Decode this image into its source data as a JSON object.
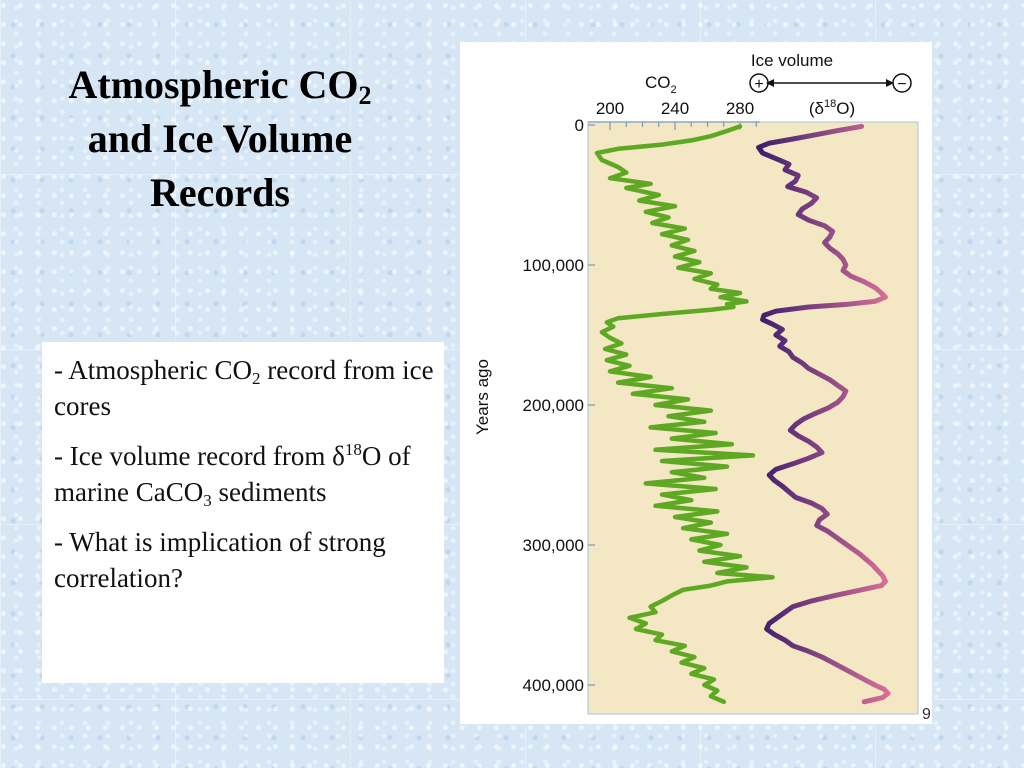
{
  "slide": {
    "title_line1": "Atmospheric CO",
    "title_line1_sub": "2",
    "title_line2": "and Ice Volume",
    "title_line3": "Records",
    "bullets": [
      {
        "a": "- Atmospheric CO",
        "sub": "2",
        "b": " record from ice cores"
      },
      {
        "a": "- Ice volume record from δ",
        "sup": "18",
        "b": "O of marine CaCO",
        "sub": "3",
        "c": " sediments"
      },
      {
        "a": "- What is implication of strong correlation?"
      }
    ],
    "page_number": "9"
  },
  "chart_data": {
    "type": "line",
    "ylabel": "Years ago",
    "y_axis": {
      "min": 0,
      "max": 420000,
      "reversed": true,
      "ticks": [
        0,
        100000,
        200000,
        300000,
        400000
      ],
      "tick_labels": [
        "0",
        "100,000",
        "200,000",
        "300,000",
        "400,000"
      ]
    },
    "co2_axis": {
      "label": "CO",
      "label_sub": "2",
      "ticks": [
        200,
        240,
        280
      ],
      "tick_labels": [
        "200",
        "240",
        "280"
      ],
      "min": 198,
      "max": 300
    },
    "ice_axis": {
      "label": "Ice volume",
      "unit_a": "(δ",
      "unit_sup": "18",
      "unit_b": "O)",
      "plus": "+",
      "minus": "−"
    },
    "plot_background": "#f4e7c4",
    "series": [
      {
        "name": "CO2",
        "color": "#5fa823",
        "x_years": [
          1000,
          3000,
          5000,
          8000,
          11000,
          14000,
          17000,
          20000,
          25000,
          30000,
          34000,
          38000,
          42000,
          45000,
          50000,
          54000,
          58000,
          62000,
          66000,
          70000,
          74000,
          78000,
          82000,
          86000,
          90000,
          94000,
          98000,
          102000,
          106000,
          110000,
          114000,
          117000,
          120000,
          123000,
          126000,
          128000,
          130000,
          132000,
          135000,
          138000,
          141000,
          144000,
          148000,
          152000,
          156000,
          160000,
          164000,
          168000,
          172000,
          176000,
          180000,
          184000,
          188000,
          192000,
          196000,
          200000,
          204000,
          208000,
          212000,
          216000,
          220000,
          224000,
          228000,
          232000,
          236000,
          240000,
          244000,
          248000,
          252000,
          256000,
          260000,
          264000,
          268000,
          272000,
          276000,
          280000,
          284000,
          288000,
          292000,
          296000,
          300000,
          304000,
          308000,
          312000,
          316000,
          320000,
          323000,
          326000,
          329000,
          332000,
          336000,
          340000,
          344000,
          348000,
          352000,
          356000,
          360000,
          364000,
          368000,
          372000,
          376000,
          380000,
          384000,
          388000,
          392000,
          396000,
          400000,
          404000,
          408000,
          412000
        ],
        "co2_ppm": [
          280,
          275,
          270,
          262,
          250,
          232,
          205,
          192,
          195,
          205,
          210,
          200,
          225,
          210,
          230,
          218,
          240,
          222,
          236,
          226,
          246,
          232,
          248,
          238,
          252,
          240,
          255,
          242,
          262,
          252,
          266,
          262,
          280,
          268,
          284,
          272,
          276,
          262,
          232,
          205,
          198,
          202,
          195,
          200,
          207,
          197,
          210,
          198,
          212,
          200,
          225,
          205,
          238,
          214,
          248,
          228,
          262,
          236,
          258,
          225,
          265,
          238,
          275,
          228,
          288,
          232,
          272,
          238,
          258,
          222,
          265,
          232,
          250,
          228,
          266,
          240,
          262,
          245,
          272,
          250,
          268,
          255,
          280,
          258,
          284,
          266,
          300,
          272,
          262,
          245,
          238,
          232,
          225,
          228,
          212,
          222,
          216,
          232,
          228,
          246,
          238,
          252,
          244,
          258,
          250,
          264,
          258,
          266,
          262,
          270
        ]
      },
      {
        "name": "Ice volume (δ18O)",
        "color_start": "#3b1d6e",
        "color_end": "#d77097",
        "x_years": [
          1000,
          4000,
          7000,
          10000,
          13000,
          16000,
          20000,
          24000,
          28000,
          32000,
          36000,
          40000,
          44000,
          48000,
          52000,
          56000,
          60000,
          64000,
          68000,
          72000,
          76000,
          80000,
          84000,
          88000,
          92000,
          96000,
          100000,
          104000,
          108000,
          112000,
          116000,
          120000,
          123000,
          126000,
          128000,
          130000,
          133000,
          136000,
          139000,
          142000,
          146000,
          150000,
          154000,
          158000,
          162000,
          166000,
          170000,
          174000,
          178000,
          182000,
          186000,
          190000,
          194000,
          198000,
          202000,
          206000,
          210000,
          214000,
          218000,
          222000,
          226000,
          230000,
          234000,
          238000,
          242000,
          246000,
          250000,
          254000,
          258000,
          262000,
          266000,
          270000,
          274000,
          278000,
          282000,
          286000,
          290000,
          294000,
          298000,
          302000,
          306000,
          310000,
          314000,
          318000,
          322000,
          326000,
          329000,
          332000,
          336000,
          340000,
          344000,
          348000,
          352000,
          356000,
          360000,
          364000,
          368000,
          372000,
          376000,
          380000,
          384000,
          388000,
          392000,
          396000,
          400000,
          403000,
          406000,
          409000,
          412000
        ],
        "rel_value": [
          0.8,
          0.62,
          0.45,
          0.28,
          0.1,
          0.02,
          0.05,
          0.15,
          0.25,
          0.22,
          0.32,
          0.3,
          0.24,
          0.38,
          0.46,
          0.42,
          0.35,
          0.32,
          0.4,
          0.52,
          0.58,
          0.56,
          0.52,
          0.56,
          0.62,
          0.66,
          0.68,
          0.66,
          0.72,
          0.82,
          0.9,
          0.95,
          0.98,
          0.9,
          0.7,
          0.4,
          0.15,
          0.06,
          0.05,
          0.12,
          0.2,
          0.15,
          0.22,
          0.18,
          0.25,
          0.28,
          0.35,
          0.4,
          0.48,
          0.56,
          0.62,
          0.68,
          0.66,
          0.62,
          0.55,
          0.45,
          0.36,
          0.3,
          0.26,
          0.32,
          0.4,
          0.46,
          0.5,
          0.4,
          0.28,
          0.15,
          0.1,
          0.14,
          0.2,
          0.25,
          0.3,
          0.42,
          0.5,
          0.54,
          0.48,
          0.46,
          0.54,
          0.6,
          0.66,
          0.72,
          0.78,
          0.83,
          0.88,
          0.92,
          0.96,
          0.98,
          0.95,
          0.8,
          0.6,
          0.42,
          0.28,
          0.22,
          0.16,
          0.1,
          0.08,
          0.14,
          0.22,
          0.28,
          0.4,
          0.5,
          0.58,
          0.66,
          0.74,
          0.82,
          0.9,
          0.97,
          1.0,
          0.96,
          0.82
        ]
      }
    ]
  }
}
